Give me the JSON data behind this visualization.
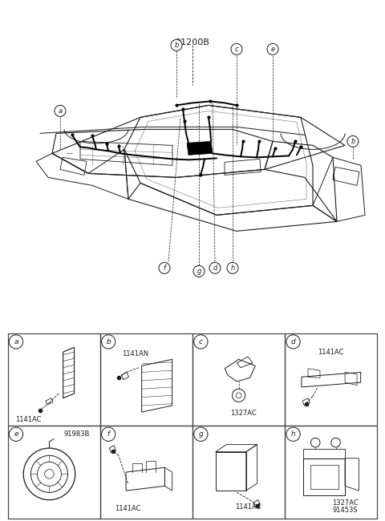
{
  "title": "91200B",
  "bg_color": "#ffffff",
  "line_color": "#1a1a1a",
  "grid_line_color": "#444444",
  "cells": [
    {
      "label": "a",
      "part": "1141AC",
      "row": 0,
      "col": 0
    },
    {
      "label": "b",
      "part": "1141AN",
      "row": 0,
      "col": 1
    },
    {
      "label": "c",
      "part": "1327AC",
      "row": 0,
      "col": 2
    },
    {
      "label": "d",
      "part": "1141AC",
      "row": 0,
      "col": 3
    },
    {
      "label": "e",
      "part": "91983B",
      "row": 1,
      "col": 0
    },
    {
      "label": "f",
      "part": "1141AC",
      "row": 1,
      "col": 1
    },
    {
      "label": "g",
      "part": "1141AC",
      "row": 1,
      "col": 2
    },
    {
      "label": "h",
      "part1": "1327AC",
      "part2": "91453S",
      "row": 1,
      "col": 3
    }
  ]
}
